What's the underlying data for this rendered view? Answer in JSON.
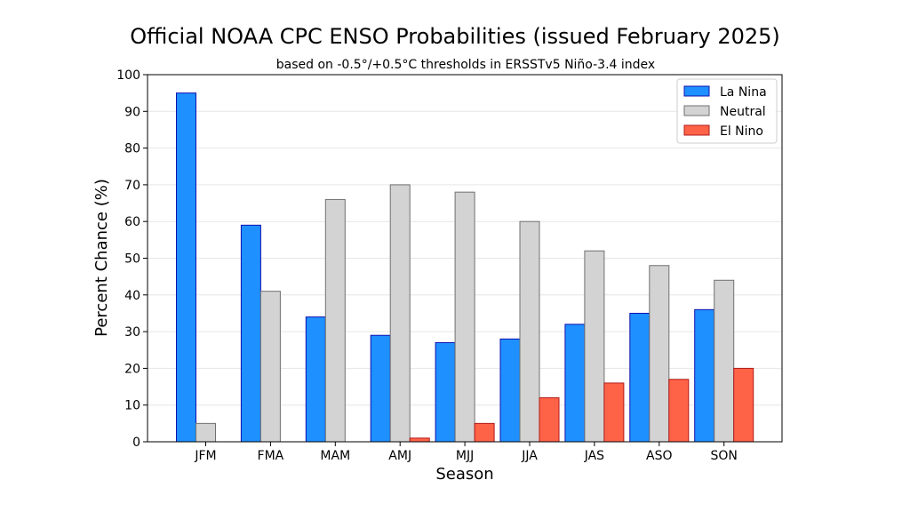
{
  "chart_data": {
    "type": "bar",
    "title": "Official NOAA CPC ENSO Probabilities (issued February 2025)",
    "subtitle": "based on -0.5°/+0.5°C thresholds in ERSSTv5 Niño-3.4 index",
    "xlabel": "Season",
    "ylabel": "Percent Chance (%)",
    "ylim": [
      0,
      100
    ],
    "yticks": [
      "0",
      "10",
      "20",
      "30",
      "40",
      "50",
      "60",
      "70",
      "80",
      "90",
      "100"
    ],
    "grid": true,
    "legend_position": "top-right",
    "categories": [
      "JFM",
      "FMA",
      "MAM",
      "AMJ",
      "MJJ",
      "JJA",
      "JAS",
      "ASO",
      "SON"
    ],
    "series": [
      {
        "name": "La Nina",
        "color": "#1e90ff",
        "edge": "#1010b0",
        "values": [
          95,
          59,
          34,
          29,
          27,
          28,
          32,
          35,
          36
        ]
      },
      {
        "name": "Neutral",
        "color": "#d3d3d3",
        "edge": "#707070",
        "values": [
          5,
          41,
          66,
          70,
          68,
          60,
          52,
          48,
          44
        ]
      },
      {
        "name": "El Nino",
        "color": "#ff6347",
        "edge": "#b01818",
        "values": [
          0,
          0,
          0,
          1,
          5,
          12,
          16,
          17,
          20
        ]
      }
    ]
  }
}
